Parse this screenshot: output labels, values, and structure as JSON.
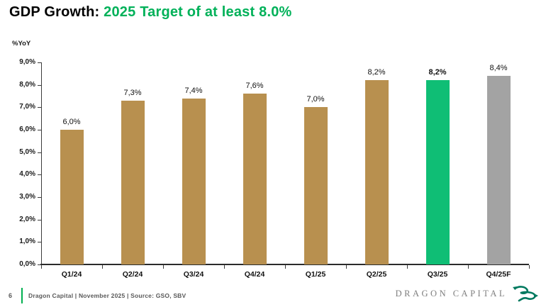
{
  "title": {
    "black": "GDP Growth:",
    "green": "2025 Target of at least 8.0%"
  },
  "chart_data": {
    "type": "bar",
    "title": "GDP Growth: 2025 Target of at least 8.0%",
    "ylabel": "%YoY",
    "xlabel": "",
    "categories": [
      "Q1/24",
      "Q2/24",
      "Q3/24",
      "Q4/24",
      "Q1/25",
      "Q2/25",
      "Q3/25",
      "Q4/25F"
    ],
    "values": [
      6.0,
      7.3,
      7.4,
      7.6,
      7.0,
      8.2,
      8.2,
      8.4
    ],
    "value_labels": [
      "6,0%",
      "7,3%",
      "7,4%",
      "7,6%",
      "7,0%",
      "8,2%",
      "8,2%",
      "8,4%"
    ],
    "bold_value_labels": [
      false,
      false,
      false,
      false,
      false,
      false,
      true,
      false
    ],
    "bar_colors": [
      "#B8904F",
      "#B8904F",
      "#B8904F",
      "#B8904F",
      "#B8904F",
      "#B8904F",
      "#0FBE75",
      "#A3A3A3"
    ],
    "ylim": [
      0,
      9
    ],
    "ytick_labels": [
      "0,0%",
      "1,0%",
      "2,0%",
      "3,0%",
      "4,0%",
      "5,0%",
      "6,0%",
      "7,0%",
      "8,0%",
      "9,0%"
    ],
    "grid": false,
    "legend": null
  },
  "footer": {
    "page_number": "6",
    "text": "Dragon Capital | November 2025 | Source: GSO, SBV",
    "brand": "DRAGON CAPITAL"
  },
  "colors": {
    "title_green": "#00B159",
    "bar_tan": "#B8904F",
    "bar_green": "#0FBE75",
    "bar_gray": "#A3A3A3",
    "footer_accent": "#00B050",
    "logo_green": "#00795F"
  }
}
